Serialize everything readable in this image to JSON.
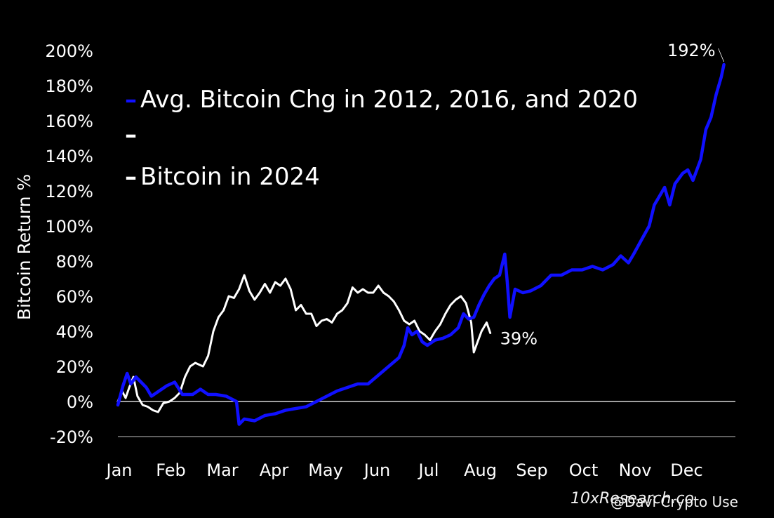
{
  "chart_data": {
    "type": "line",
    "title": "",
    "xlabel": "",
    "ylabel": "Bitcoin Return %",
    "ylim": [
      -20,
      200
    ],
    "yticks": [
      "-20%",
      "0%",
      "20%",
      "40%",
      "60%",
      "80%",
      "100%",
      "120%",
      "140%",
      "160%",
      "180%",
      "200%"
    ],
    "xticks": [
      "Jan",
      "Feb",
      "Mar",
      "Apr",
      "May",
      "Jun",
      "Jul",
      "Aug",
      "Sep",
      "Oct",
      "Nov",
      "Dec"
    ],
    "legend_placement": "top-left",
    "zero_line": true,
    "legend": [
      {
        "marker": "–",
        "label": "Avg. Bitcoin Chg in 2012, 2016, and 2020",
        "color": "#1010ff"
      },
      {
        "marker": "–",
        "label": "",
        "color": "#ffffff"
      },
      {
        "marker": "–",
        "label": "Bitcoin in 2024",
        "color": "#ffffff"
      }
    ],
    "series": [
      {
        "name": "Avg. Bitcoin Chg in 2012, 2016, and 2020",
        "color": "#1010ff",
        "end_label": "192%",
        "points": [
          [
            0.0,
            -2
          ],
          [
            0.1,
            9
          ],
          [
            0.18,
            16
          ],
          [
            0.25,
            10
          ],
          [
            0.35,
            14
          ],
          [
            0.45,
            11
          ],
          [
            0.55,
            8
          ],
          [
            0.65,
            3
          ],
          [
            0.8,
            6
          ],
          [
            0.95,
            9
          ],
          [
            1.1,
            11
          ],
          [
            1.25,
            4
          ],
          [
            1.45,
            4
          ],
          [
            1.6,
            7
          ],
          [
            1.75,
            4
          ],
          [
            1.9,
            4
          ],
          [
            2.1,
            3
          ],
          [
            2.3,
            0
          ],
          [
            2.35,
            -13
          ],
          [
            2.45,
            -10
          ],
          [
            2.65,
            -11
          ],
          [
            2.85,
            -8
          ],
          [
            3.05,
            -7
          ],
          [
            3.25,
            -5
          ],
          [
            3.45,
            -4
          ],
          [
            3.65,
            -3
          ],
          [
            3.85,
            0
          ],
          [
            4.05,
            3
          ],
          [
            4.25,
            6
          ],
          [
            4.45,
            8
          ],
          [
            4.65,
            10
          ],
          [
            4.85,
            10
          ],
          [
            5.05,
            15
          ],
          [
            5.25,
            20
          ],
          [
            5.45,
            25
          ],
          [
            5.55,
            32
          ],
          [
            5.62,
            42
          ],
          [
            5.7,
            38
          ],
          [
            5.8,
            40
          ],
          [
            5.9,
            34
          ],
          [
            6.0,
            32
          ],
          [
            6.15,
            35
          ],
          [
            6.3,
            36
          ],
          [
            6.45,
            38
          ],
          [
            6.6,
            42
          ],
          [
            6.7,
            50
          ],
          [
            6.8,
            47
          ],
          [
            6.9,
            48
          ],
          [
            7.0,
            55
          ],
          [
            7.1,
            61
          ],
          [
            7.2,
            66
          ],
          [
            7.3,
            70
          ],
          [
            7.4,
            72
          ],
          [
            7.5,
            84
          ],
          [
            7.55,
            68
          ],
          [
            7.6,
            48
          ],
          [
            7.7,
            64
          ],
          [
            7.85,
            62
          ],
          [
            8.0,
            63
          ],
          [
            8.2,
            66
          ],
          [
            8.4,
            72
          ],
          [
            8.6,
            72
          ],
          [
            8.8,
            75
          ],
          [
            9.0,
            75
          ],
          [
            9.2,
            77
          ],
          [
            9.4,
            75
          ],
          [
            9.6,
            78
          ],
          [
            9.75,
            83
          ],
          [
            9.9,
            79
          ],
          [
            10.0,
            84
          ],
          [
            10.15,
            92
          ],
          [
            10.3,
            100
          ],
          [
            10.4,
            112
          ],
          [
            10.5,
            117
          ],
          [
            10.6,
            122
          ],
          [
            10.7,
            112
          ],
          [
            10.8,
            124
          ],
          [
            10.95,
            130
          ],
          [
            11.05,
            132
          ],
          [
            11.15,
            126
          ],
          [
            11.3,
            138
          ],
          [
            11.4,
            155
          ],
          [
            11.5,
            162
          ],
          [
            11.6,
            175
          ],
          [
            11.7,
            185
          ],
          [
            11.75,
            192
          ]
        ]
      },
      {
        "name": "Bitcoin in 2024",
        "color": "#ffffff",
        "end_label": "39%",
        "points": [
          [
            0.0,
            0
          ],
          [
            0.08,
            6
          ],
          [
            0.15,
            2
          ],
          [
            0.22,
            8
          ],
          [
            0.3,
            14
          ],
          [
            0.38,
            3
          ],
          [
            0.48,
            -2
          ],
          [
            0.58,
            -3
          ],
          [
            0.68,
            -5
          ],
          [
            0.78,
            -6
          ],
          [
            0.88,
            -1
          ],
          [
            1.0,
            0
          ],
          [
            1.1,
            2
          ],
          [
            1.2,
            5
          ],
          [
            1.3,
            14
          ],
          [
            1.4,
            20
          ],
          [
            1.5,
            22
          ],
          [
            1.65,
            20
          ],
          [
            1.75,
            26
          ],
          [
            1.85,
            40
          ],
          [
            1.95,
            48
          ],
          [
            2.05,
            52
          ],
          [
            2.15,
            60
          ],
          [
            2.25,
            59
          ],
          [
            2.35,
            64
          ],
          [
            2.45,
            72
          ],
          [
            2.55,
            63
          ],
          [
            2.65,
            58
          ],
          [
            2.75,
            62
          ],
          [
            2.85,
            67
          ],
          [
            2.95,
            62
          ],
          [
            3.05,
            68
          ],
          [
            3.15,
            66
          ],
          [
            3.25,
            70
          ],
          [
            3.35,
            64
          ],
          [
            3.45,
            52
          ],
          [
            3.55,
            55
          ],
          [
            3.65,
            50
          ],
          [
            3.75,
            50
          ],
          [
            3.85,
            43
          ],
          [
            3.95,
            46
          ],
          [
            4.05,
            47
          ],
          [
            4.15,
            45
          ],
          [
            4.25,
            50
          ],
          [
            4.35,
            52
          ],
          [
            4.45,
            56
          ],
          [
            4.55,
            65
          ],
          [
            4.65,
            62
          ],
          [
            4.75,
            64
          ],
          [
            4.85,
            62
          ],
          [
            4.95,
            62
          ],
          [
            5.05,
            66
          ],
          [
            5.15,
            62
          ],
          [
            5.25,
            60
          ],
          [
            5.35,
            57
          ],
          [
            5.45,
            52
          ],
          [
            5.55,
            46
          ],
          [
            5.65,
            44
          ],
          [
            5.75,
            46
          ],
          [
            5.85,
            40
          ],
          [
            5.95,
            38
          ],
          [
            6.05,
            35
          ],
          [
            6.15,
            40
          ],
          [
            6.25,
            44
          ],
          [
            6.35,
            50
          ],
          [
            6.45,
            55
          ],
          [
            6.55,
            58
          ],
          [
            6.65,
            60
          ],
          [
            6.75,
            56
          ],
          [
            6.85,
            45
          ],
          [
            6.9,
            28
          ],
          [
            6.95,
            32
          ],
          [
            7.05,
            40
          ],
          [
            7.15,
            45
          ],
          [
            7.22,
            39
          ]
        ]
      }
    ]
  },
  "watermarks": {
    "source": "10xResearch.co",
    "credit": "@Davi Crypto Use"
  }
}
